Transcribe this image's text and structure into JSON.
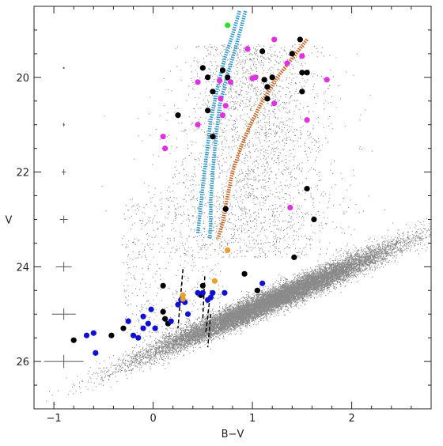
{
  "chart_data": {
    "type": "scatter",
    "title": "",
    "xlabel": "B−V",
    "ylabel": "V",
    "xlim": [
      -1.2,
      2.8
    ],
    "ylim": [
      27.0,
      18.5
    ],
    "y_inverted": true,
    "grid": false,
    "x_ticks": [
      -1,
      0,
      1,
      2
    ],
    "x_tick_labels": [
      "−1",
      "0",
      "1",
      "2"
    ],
    "y_ticks": [
      20,
      22,
      24,
      26
    ],
    "y_tick_labels": [
      "20",
      "22",
      "24",
      "26"
    ],
    "colors": {
      "field": "#8a8a8a",
      "black": "#000000",
      "magenta": "#e030e0",
      "blue": "#1010d0",
      "orange": "#e8a030",
      "green": "#30e030",
      "blue_track": "#3399cc",
      "orange_track": "#cc6622",
      "error_bar": "#555555"
    },
    "field_population": {
      "description_units": "B-V vs V",
      "main_cloud_center": [
        1.15,
        24.6
      ],
      "upper_plume_center": [
        1.1,
        22.2
      ]
    },
    "error_bars": {
      "x": -0.9,
      "points": [
        {
          "y": 19.8,
          "xerr": 0.01
        },
        {
          "y": 21.0,
          "xerr": 0.01
        },
        {
          "y": 22.0,
          "xerr": 0.02
        },
        {
          "y": 23.0,
          "xerr": 0.04
        },
        {
          "y": 24.0,
          "xerr": 0.08
        },
        {
          "y": 25.0,
          "xerr": 0.12
        },
        {
          "y": 26.0,
          "xerr": 0.2
        }
      ]
    },
    "series": [
      {
        "color_key": "black",
        "points": [
          [
            0.5,
            19.8
          ],
          [
            0.55,
            20.0
          ],
          [
            0.7,
            19.85
          ],
          [
            0.75,
            20.0
          ],
          [
            1.1,
            19.45
          ],
          [
            1.12,
            20.05
          ],
          [
            1.15,
            20.2
          ],
          [
            1.2,
            20.0
          ],
          [
            1.4,
            19.5
          ],
          [
            1.48,
            19.2
          ],
          [
            1.5,
            19.9
          ],
          [
            1.55,
            19.9
          ],
          [
            1.5,
            20.3
          ],
          [
            1.15,
            20.45
          ],
          [
            0.6,
            20.3
          ],
          [
            0.55,
            20.7
          ],
          [
            0.6,
            21.25
          ],
          [
            0.25,
            20.8
          ],
          [
            0.73,
            22.78
          ],
          [
            1.55,
            22.35
          ],
          [
            1.62,
            23.0
          ],
          [
            1.42,
            23.8
          ],
          [
            0.92,
            24.15
          ],
          [
            0.1,
            24.4
          ],
          [
            0.5,
            24.4
          ],
          [
            0.1,
            24.95
          ],
          [
            0.12,
            25.1
          ],
          [
            0.15,
            25.2
          ],
          [
            -0.3,
            25.3
          ],
          [
            -0.42,
            25.45
          ],
          [
            -0.8,
            25.55
          ],
          [
            1.05,
            24.5
          ],
          [
            0.48,
            24.6
          ]
        ]
      },
      {
        "color_key": "magenta",
        "points": [
          [
            0.95,
            19.4
          ],
          [
            1.22,
            19.2
          ],
          [
            1.5,
            19.55
          ],
          [
            1.35,
            19.7
          ],
          [
            1.75,
            20.05
          ],
          [
            0.45,
            20.1
          ],
          [
            0.78,
            20.1
          ],
          [
            0.68,
            20.45
          ],
          [
            0.73,
            20.6
          ],
          [
            0.7,
            20.8
          ],
          [
            0.45,
            21.0
          ],
          [
            0.1,
            21.25
          ],
          [
            0.12,
            21.5
          ],
          [
            1.03,
            20.0
          ],
          [
            1.0,
            20.02
          ],
          [
            1.22,
            20.55
          ],
          [
            1.55,
            20.9
          ],
          [
            1.38,
            22.75
          ],
          [
            0.67,
            20.07
          ]
        ]
      },
      {
        "color_key": "blue",
        "points": [
          [
            -0.6,
            25.4
          ],
          [
            -0.67,
            25.45
          ],
          [
            -0.58,
            25.82
          ],
          [
            -0.25,
            25.15
          ],
          [
            -0.2,
            25.45
          ],
          [
            -0.15,
            25.5
          ],
          [
            -0.1,
            25.05
          ],
          [
            -0.1,
            25.3
          ],
          [
            -0.05,
            25.2
          ],
          [
            -0.02,
            24.9
          ],
          [
            0.02,
            25.3
          ],
          [
            0.18,
            25.15
          ],
          [
            0.25,
            24.8
          ],
          [
            0.28,
            24.7
          ],
          [
            0.32,
            24.75
          ],
          [
            0.35,
            25.0
          ],
          [
            0.45,
            24.55
          ],
          [
            0.5,
            24.55
          ],
          [
            0.58,
            24.65
          ],
          [
            0.6,
            24.55
          ],
          [
            0.72,
            24.55
          ],
          [
            1.1,
            24.35
          ],
          [
            0.55,
            24.7
          ]
        ]
      },
      {
        "color_key": "orange",
        "points": [
          [
            0.3,
            24.6
          ],
          [
            0.62,
            24.3
          ],
          [
            0.75,
            23.65
          ],
          [
            0.3,
            24.68
          ]
        ]
      },
      {
        "color_key": "green",
        "points": [
          [
            0.75,
            18.9
          ]
        ]
      }
    ],
    "tracks": [
      {
        "color_key": "blue_track",
        "points": [
          [
            0.93,
            18.6
          ],
          [
            0.88,
            19.0
          ],
          [
            0.8,
            19.6
          ],
          [
            0.74,
            20.0
          ],
          [
            0.67,
            20.6
          ],
          [
            0.63,
            21.3
          ],
          [
            0.6,
            22.0
          ],
          [
            0.58,
            22.6
          ],
          [
            0.58,
            23.1
          ],
          [
            0.57,
            23.4
          ]
        ]
      },
      {
        "color_key": "blue_track",
        "points": [
          [
            0.87,
            18.6
          ],
          [
            0.8,
            19.1
          ],
          [
            0.72,
            19.6
          ],
          [
            0.65,
            20.2
          ],
          [
            0.58,
            20.9
          ],
          [
            0.54,
            21.6
          ],
          [
            0.5,
            22.3
          ],
          [
            0.47,
            22.9
          ],
          [
            0.45,
            23.3
          ]
        ]
      },
      {
        "color_key": "orange_track",
        "points": [
          [
            1.55,
            19.2
          ],
          [
            1.4,
            19.6
          ],
          [
            1.25,
            20.0
          ],
          [
            1.1,
            20.5
          ],
          [
            0.98,
            21.0
          ],
          [
            0.88,
            21.5
          ],
          [
            0.8,
            22.0
          ],
          [
            0.74,
            22.6
          ],
          [
            0.7,
            23.1
          ],
          [
            0.65,
            23.4
          ]
        ]
      }
    ],
    "segments": [
      [
        [
          0.3,
          24.05
        ],
        [
          0.25,
          25.3
        ]
      ],
      [
        [
          0.52,
          24.2
        ],
        [
          0.5,
          25.1
        ]
      ],
      [
        [
          0.58,
          24.5
        ],
        [
          0.53,
          25.4
        ]
      ],
      [
        [
          0.58,
          25.0
        ],
        [
          0.55,
          25.7
        ]
      ]
    ]
  }
}
